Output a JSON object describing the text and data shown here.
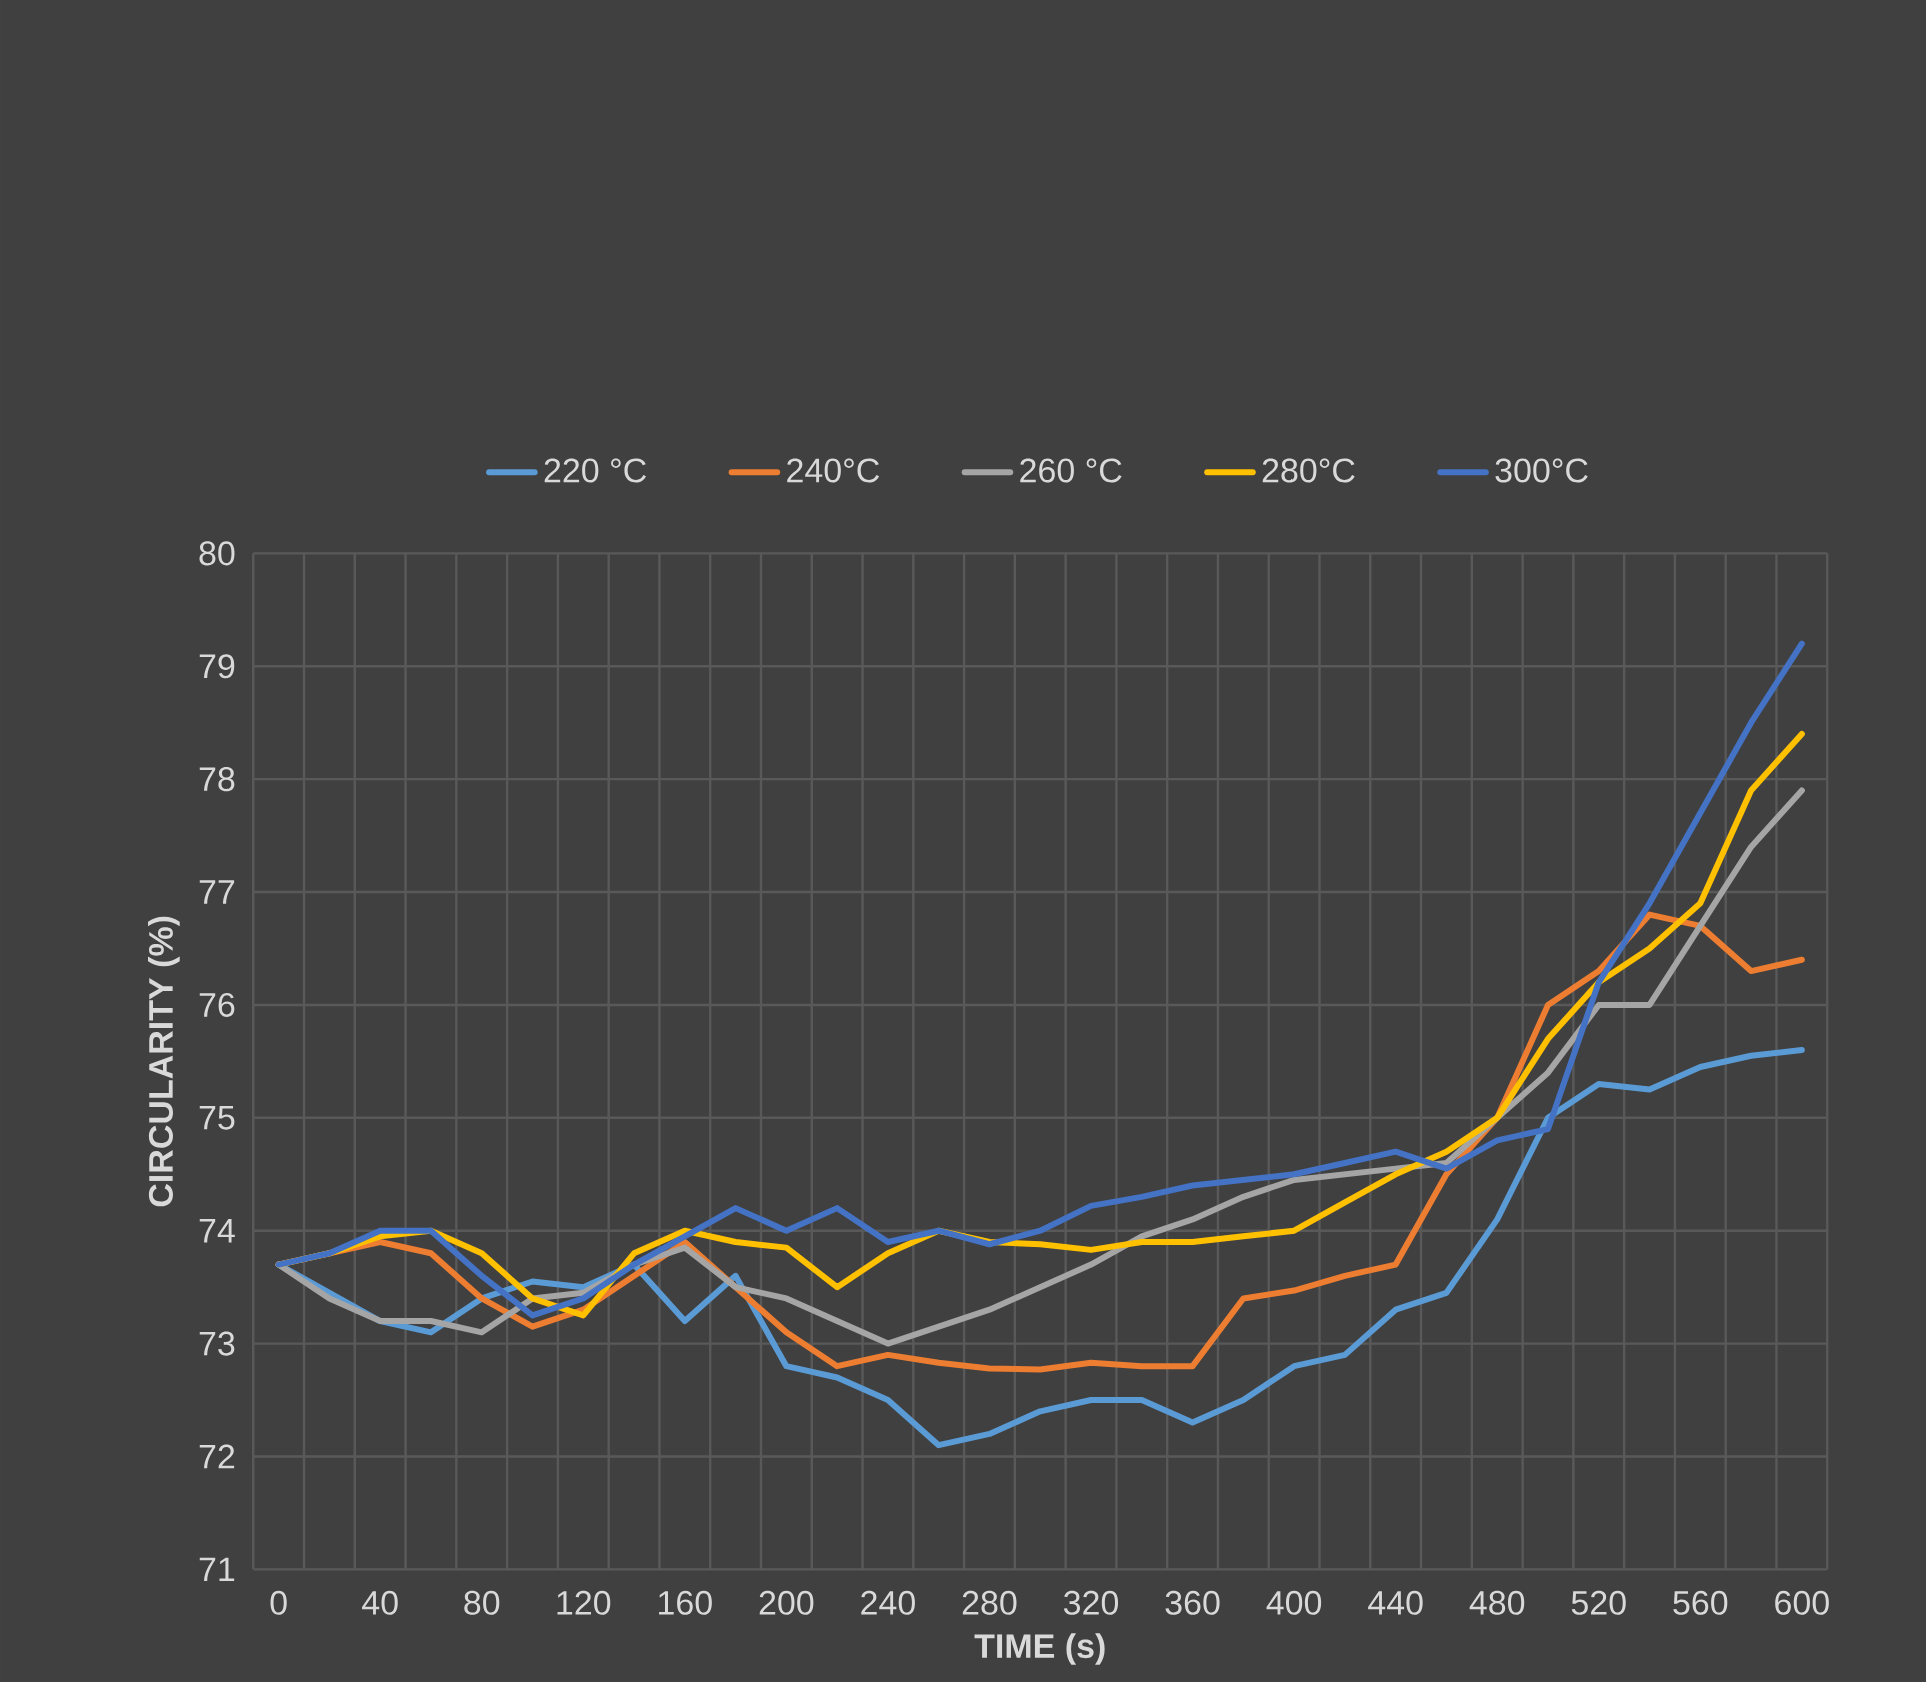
{
  "chart_data": {
    "type": "line",
    "xlabel": "TIME (s)",
    "ylabel": "CIRCULARITY (%)",
    "x": [
      0,
      20,
      40,
      60,
      80,
      100,
      120,
      140,
      160,
      180,
      200,
      220,
      240,
      260,
      280,
      300,
      320,
      340,
      360,
      380,
      400,
      420,
      440,
      460,
      480,
      500,
      520,
      540,
      560,
      580,
      600
    ],
    "xlim": [
      -10,
      610
    ],
    "xticks": [
      0,
      40,
      80,
      120,
      160,
      200,
      240,
      280,
      320,
      360,
      400,
      440,
      480,
      520,
      560,
      600
    ],
    "ylim": [
      71,
      80
    ],
    "yticks": [
      71,
      72,
      73,
      74,
      75,
      76,
      77,
      78,
      79,
      80
    ],
    "grid": true,
    "legend": "top",
    "line_style": "solid",
    "marker": "none",
    "series": [
      {
        "name": "220 °C",
        "color": "#5b9bd5",
        "values": [
          73.7,
          73.45,
          73.2,
          73.1,
          73.4,
          73.55,
          73.5,
          73.7,
          73.2,
          73.6,
          72.8,
          72.7,
          72.5,
          72.1,
          72.2,
          72.4,
          72.5,
          72.5,
          72.3,
          72.5,
          72.8,
          72.9,
          73.3,
          73.45,
          74.1,
          75.0,
          75.3,
          75.25,
          75.45,
          75.55,
          75.6
        ]
      },
      {
        "name": "240°C",
        "color": "#ed7d31",
        "values": [
          73.7,
          73.8,
          73.9,
          73.8,
          73.4,
          73.15,
          73.3,
          73.6,
          73.9,
          73.5,
          73.1,
          72.8,
          72.9,
          72.83,
          72.78,
          72.77,
          72.83,
          72.8,
          72.8,
          73.4,
          73.47,
          73.6,
          73.7,
          74.5,
          75.0,
          76.0,
          76.3,
          76.8,
          76.7,
          76.3,
          76.4
        ]
      },
      {
        "name": "260 °C",
        "color": "#a5a5a5",
        "values": [
          73.7,
          73.4,
          73.2,
          73.2,
          73.1,
          73.4,
          73.45,
          73.7,
          73.85,
          73.5,
          73.4,
          73.2,
          73.0,
          73.15,
          73.3,
          73.5,
          73.7,
          73.95,
          74.1,
          74.3,
          74.45,
          74.5,
          74.55,
          74.6,
          75.0,
          75.4,
          76.0,
          76.0,
          76.7,
          77.4,
          77.9
        ]
      },
      {
        "name": "280°C",
        "color": "#ffc000",
        "values": [
          73.7,
          73.8,
          73.95,
          74.0,
          73.8,
          73.4,
          73.25,
          73.8,
          74.0,
          73.9,
          73.85,
          73.5,
          73.8,
          74.0,
          73.9,
          73.88,
          73.83,
          73.9,
          73.9,
          73.95,
          74.0,
          74.25,
          74.5,
          74.7,
          75.0,
          75.7,
          76.2,
          76.5,
          76.9,
          77.9,
          78.4
        ]
      },
      {
        "name": "300°C",
        "color": "#4472c4",
        "values": [
          73.7,
          73.8,
          74.0,
          74.0,
          73.6,
          73.25,
          73.4,
          73.7,
          73.95,
          74.2,
          74.0,
          74.2,
          73.9,
          74.0,
          73.88,
          74.0,
          74.22,
          74.3,
          74.4,
          74.45,
          74.5,
          74.6,
          74.7,
          74.55,
          74.8,
          74.9,
          76.2,
          76.9,
          77.7,
          78.5,
          79.2
        ]
      }
    ]
  }
}
